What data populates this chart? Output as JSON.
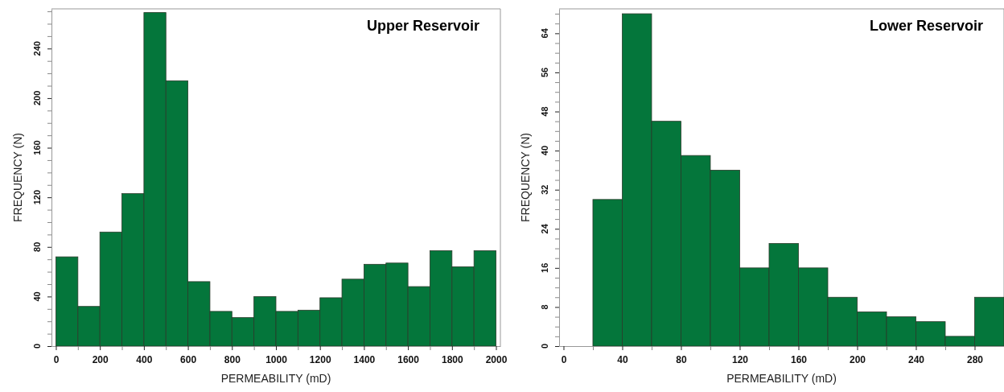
{
  "chart_data": [
    {
      "type": "histogram",
      "title": "Upper Reservoir",
      "xlabel": "PERMEABILITY (mD)",
      "ylabel": "FREQUENCY (N)",
      "color": "#04763b",
      "bins": [
        0,
        100,
        200,
        300,
        400,
        500,
        600,
        700,
        800,
        900,
        1000,
        1100,
        1200,
        1300,
        1400,
        1500,
        1600,
        1700,
        1800,
        1900,
        2000
      ],
      "values": [
        72,
        32,
        92,
        123,
        269,
        214,
        52,
        28,
        23,
        40,
        28,
        29,
        39,
        54,
        66,
        67,
        48,
        77,
        64,
        77
      ],
      "xlim": [
        -20,
        2020
      ],
      "ylim": [
        0,
        272
      ],
      "xticks": [
        0,
        {
          "value": 100,
          "label": null
        },
        200,
        {
          "value": 300,
          "label": null
        },
        400,
        {
          "value": 500,
          "label": null
        },
        600,
        {
          "value": 700,
          "label": null
        },
        800,
        {
          "value": 900,
          "label": null
        },
        1000,
        {
          "value": 1100,
          "label": null
        },
        1200,
        {
          "value": 1300,
          "label": null
        },
        1400,
        {
          "value": 1500,
          "label": null
        },
        1600,
        {
          "value": 1700,
          "label": null
        },
        1800,
        {
          "value": 1900,
          "label": null
        },
        2000
      ],
      "yticks": [
        0,
        {
          "value": 10,
          "label": null
        },
        {
          "value": 20,
          "label": null
        },
        {
          "value": 30,
          "label": null
        },
        40,
        {
          "value": 50,
          "label": null
        },
        {
          "value": 60,
          "label": null
        },
        {
          "value": 70,
          "label": null
        },
        80,
        {
          "value": 90,
          "label": null
        },
        {
          "value": 100,
          "label": null
        },
        {
          "value": 110,
          "label": null
        },
        120,
        {
          "value": 130,
          "label": null
        },
        {
          "value": 140,
          "label": null
        },
        {
          "value": 150,
          "label": null
        },
        160,
        {
          "value": 170,
          "label": null
        },
        {
          "value": 180,
          "label": null
        },
        {
          "value": 190,
          "label": null
        },
        200,
        {
          "value": 210,
          "label": null
        },
        {
          "value": 220,
          "label": null
        },
        {
          "value": 230,
          "label": null
        },
        240,
        {
          "value": 250,
          "label": null
        },
        {
          "value": 260,
          "label": null
        },
        {
          "value": 270,
          "label": null
        }
      ]
    },
    {
      "type": "histogram",
      "title": "Lower Reservoir",
      "xlabel": "PERMEABILITY (mD)",
      "ylabel": "FREQUENCY (N)",
      "color": "#04763b",
      "bins": [
        20,
        40,
        60,
        80,
        100,
        120,
        140,
        160,
        180,
        200,
        220,
        240,
        260,
        280,
        300
      ],
      "values": [
        30,
        68,
        46,
        39,
        36,
        16,
        21,
        16,
        10,
        7,
        6,
        5,
        2,
        10
      ],
      "xlim": [
        -3,
        300
      ],
      "ylim": [
        0,
        69
      ],
      "xticks": [
        0,
        {
          "value": 20,
          "label": null
        },
        40,
        {
          "value": 60,
          "label": null
        },
        80,
        {
          "value": 100,
          "label": null
        },
        120,
        {
          "value": 140,
          "label": null
        },
        160,
        {
          "value": 180,
          "label": null
        },
        200,
        {
          "value": 220,
          "label": null
        },
        240,
        {
          "value": 260,
          "label": null
        },
        280,
        {
          "value": 300,
          "label": null
        }
      ],
      "yticks": [
        0,
        {
          "value": 2,
          "label": null
        },
        {
          "value": 4,
          "label": null
        },
        {
          "value": 6,
          "label": null
        },
        8,
        {
          "value": 10,
          "label": null
        },
        {
          "value": 12,
          "label": null
        },
        {
          "value": 14,
          "label": null
        },
        16,
        {
          "value": 18,
          "label": null
        },
        {
          "value": 20,
          "label": null
        },
        {
          "value": 22,
          "label": null
        },
        24,
        {
          "value": 26,
          "label": null
        },
        {
          "value": 28,
          "label": null
        },
        {
          "value": 30,
          "label": null
        },
        32,
        {
          "value": 34,
          "label": null
        },
        {
          "value": 36,
          "label": null
        },
        {
          "value": 38,
          "label": null
        },
        40,
        {
          "value": 42,
          "label": null
        },
        {
          "value": 44,
          "label": null
        },
        {
          "value": 46,
          "label": null
        },
        48,
        {
          "value": 50,
          "label": null
        },
        {
          "value": 52,
          "label": null
        },
        {
          "value": 54,
          "label": null
        },
        56,
        {
          "value": 58,
          "label": null
        },
        {
          "value": 60,
          "label": null
        },
        {
          "value": 62,
          "label": null
        },
        64,
        {
          "value": 66,
          "label": null
        },
        {
          "value": 68,
          "label": null
        }
      ]
    }
  ]
}
